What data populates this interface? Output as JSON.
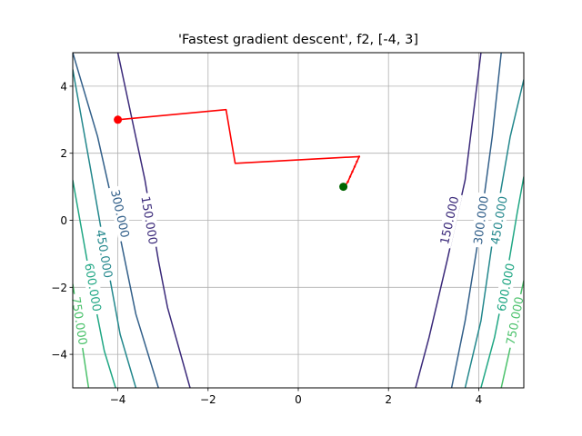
{
  "chart_data": {
    "type": "line",
    "title": "'Fastest gradient descent', f2, [-4, 3]",
    "xlabel": "",
    "ylabel": "",
    "xlim": [
      -5,
      5
    ],
    "ylim": [
      -5,
      5
    ],
    "grid": true,
    "xticks": [
      -4,
      -2,
      0,
      2,
      4
    ],
    "yticks": [
      -4,
      -2,
      0,
      2,
      4
    ],
    "xtick_labels": [
      "−4",
      "−2",
      "0",
      "2",
      "4"
    ],
    "ytick_labels": [
      "−4",
      "−2",
      "0",
      "2",
      "4"
    ],
    "contours": [
      {
        "level": 150,
        "label": "150.000",
        "color": "#3b2a7a",
        "lines": [
          {
            "points": [
              [
                -4,
                5
              ],
              [
                -3.7,
                3.1
              ],
              [
                -3.4,
                1.2
              ],
              [
                -3.1,
                -1.2
              ],
              [
                -2.9,
                -2.6
              ],
              [
                -2.4,
                -5
              ]
            ],
            "label_at": [
              -3.3,
              0
            ]
          },
          {
            "points": [
              [
                2.6,
                -5
              ],
              [
                2.9,
                -3.5
              ],
              [
                3.3,
                -1.2
              ],
              [
                3.7,
                1.2
              ],
              [
                4.05,
                5
              ]
            ],
            "label_at": [
              3.35,
              0
            ]
          }
        ]
      },
      {
        "level": 300,
        "label": "300.000",
        "color": "#33608a",
        "lines": [
          {
            "points": [
              [
                -5,
                5
              ],
              [
                -4.45,
                2.5
              ],
              [
                -3.95,
                -0.5
              ],
              [
                -3.6,
                -2.8
              ],
              [
                -3.1,
                -5
              ]
            ],
            "label_at": [
              -3.95,
              0.2
            ]
          },
          {
            "points": [
              [
                3.4,
                -5
              ],
              [
                3.7,
                -3
              ],
              [
                4.0,
                -0.5
              ],
              [
                4.3,
                2.5
              ],
              [
                4.5,
                5
              ]
            ],
            "label_at": [
              4.05,
              0
            ]
          }
        ]
      },
      {
        "level": 450,
        "label": "450.000",
        "color": "#22878c",
        "lines": [
          {
            "points": [
              [
                -5,
                4.5
              ],
              [
                -4.6,
                1.5
              ],
              [
                -4.25,
                -1.2
              ],
              [
                -3.95,
                -3.4
              ],
              [
                -3.6,
                -5
              ]
            ],
            "label_at": [
              -4.3,
              -1
            ]
          },
          {
            "points": [
              [
                3.7,
                -5
              ],
              [
                4.05,
                -3
              ],
              [
                4.35,
                -0.2
              ],
              [
                4.7,
                2.5
              ],
              [
                5,
                4.2
              ]
            ],
            "label_at": [
              4.45,
              0
            ]
          }
        ]
      },
      {
        "level": 600,
        "label": "600.000",
        "color": "#20a784",
        "lines": [
          {
            "points": [
              [
                -5,
                1.2
              ],
              [
                -4.8,
                -0.3
              ],
              [
                -4.55,
                -2.2
              ],
              [
                -4.3,
                -3.9
              ],
              [
                -4.05,
                -5
              ]
            ],
            "label_at": [
              -4.55,
              -2
            ]
          },
          {
            "points": [
              [
                4.05,
                -5
              ],
              [
                4.35,
                -3.5
              ],
              [
                4.6,
                -1.8
              ],
              [
                4.85,
                0.2
              ],
              [
                5,
                1.3
              ]
            ],
            "label_at": [
              4.6,
              -2
            ]
          }
        ]
      },
      {
        "level": 750,
        "label": "750.000",
        "color": "#4cc26c",
        "lines": [
          {
            "points": [
              [
                -5,
                -1.9
              ],
              [
                -4.85,
                -3.2
              ],
              [
                -4.65,
                -5
              ]
            ],
            "label_at": [
              -4.85,
              -3
            ]
          },
          {
            "points": [
              [
                4.5,
                -5
              ],
              [
                4.7,
                -3.8
              ],
              [
                4.9,
                -2.4
              ],
              [
                5,
                -1.8
              ]
            ],
            "label_at": [
              4.8,
              -3
            ]
          }
        ]
      }
    ],
    "path": {
      "color": "#ff0000",
      "points": [
        [
          -4,
          3
        ],
        [
          -1.6,
          3.3
        ],
        [
          -1.4,
          1.7
        ],
        [
          1.35,
          1.9
        ],
        [
          1.3,
          1.75
        ],
        [
          1.25,
          1.6
        ],
        [
          1.2,
          1.45
        ],
        [
          1.15,
          1.3
        ],
        [
          1.1,
          1.15
        ],
        [
          1.05,
          1.05
        ],
        [
          1,
          1
        ]
      ]
    },
    "start_point": {
      "x": -4,
      "y": 3,
      "color": "#ff0000"
    },
    "end_point": {
      "x": 1,
      "y": 1,
      "color": "#006400"
    }
  }
}
